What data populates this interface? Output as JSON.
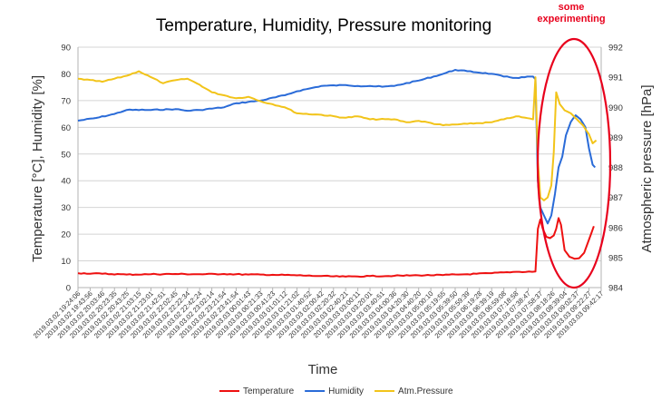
{
  "chart_data": {
    "type": "line",
    "title": "Temperature, Humidity, Pressure monitoring",
    "xlabel": "Time",
    "ylabel": "Temperature [°C], Humidity [%]",
    "y2label": "Atmospheric pressure [hPa]",
    "ylim": [
      0,
      90
    ],
    "y2lim": [
      984,
      992
    ],
    "yticks": [
      "0",
      "10",
      "20",
      "30",
      "40",
      "50",
      "60",
      "70",
      "80",
      "90"
    ],
    "y2ticks": [
      "984",
      "985",
      "986",
      "987",
      "988",
      "989",
      "990",
      "991",
      "992"
    ],
    "grid": true,
    "legend_position": "bottom",
    "annotation": "some experimenting",
    "x_tick_labels": [
      "2019.03.02 19:24:06",
      "2019.03.02 19:43:56",
      "2019.03.02 20:03:46",
      "2019.03.02 20:23:35",
      "2019.03.02 20:43:25",
      "2019.03.02 21:03:15",
      "2019.03.02 21:23:01",
      "2019.03.02 21:42:51",
      "2019.03.02 22:02:45",
      "2019.03.02 22:22:34",
      "2019.03.02 22:42:24",
      "2019.03.02 23:02:14",
      "2019.03.02 23:21:54",
      "2019.03.02 23:41:54",
      "2019.03.03 00:01:43",
      "2019.03.03 00:21:33",
      "2019.03.03 00:41:23",
      "2019.03.03 01:01:12",
      "2019.03.03 01:21:02",
      "2019.03.03 01:40:52",
      "2019.03.03 02:00:42",
      "2019.03.03 02:20:32",
      "2019.03.03 02:40:21",
      "2019.03.03 03:00:11",
      "2019.03.03 03:20:01",
      "2019.03.03 03:40:51",
      "2019.03.03 04:00:36",
      "2019.03.03 04:20:30",
      "2019.03.03 04:40:20",
      "2019.03.03 05:00:10",
      "2019.03.03 05:19:55",
      "2019.03.03 05:39:50",
      "2019.03.03 05:59:39",
      "2019.03.03 06:19:28",
      "2019.03.03 06:39:19",
      "2019.03.03 06:59:08",
      "2019.03.03 07:18:58",
      "2019.03.03 07:38:47",
      "2019.03.03 07:58:37",
      "2019.03.03 08:18:26",
      "2019.03.03 08:39:04",
      "2019.03.03 09:02:37",
      "2019.03.03 09:22:27",
      "2019.03.03 09:42:17"
    ],
    "series": [
      {
        "name": "Temperature",
        "color": "#ee1111",
        "axis": "left",
        "points": [
          [
            0,
            5.4
          ],
          [
            2,
            5.2
          ],
          [
            4,
            4.9
          ],
          [
            6,
            5.0
          ],
          [
            8,
            5.1
          ],
          [
            10,
            5.0
          ],
          [
            12,
            5.1
          ],
          [
            14,
            4.9
          ],
          [
            16,
            4.8
          ],
          [
            18,
            4.6
          ],
          [
            20,
            4.3
          ],
          [
            22,
            4.1
          ],
          [
            24,
            4.3
          ],
          [
            26,
            4.4
          ],
          [
            28,
            4.6
          ],
          [
            30,
            4.7
          ],
          [
            32,
            5.0
          ],
          [
            34,
            5.4
          ],
          [
            36,
            5.9
          ],
          [
            37.6,
            6.0
          ],
          [
            37.8,
            22.0
          ],
          [
            38.0,
            25.5
          ],
          [
            38.2,
            22.0
          ],
          [
            38.5,
            19.0
          ],
          [
            38.8,
            18.5
          ],
          [
            39.1,
            19.5
          ],
          [
            39.3,
            22.0
          ],
          [
            39.5,
            26.0
          ],
          [
            39.7,
            23.5
          ],
          [
            40.0,
            14.0
          ],
          [
            40.4,
            11.5
          ],
          [
            40.8,
            10.8
          ],
          [
            41.2,
            11.0
          ],
          [
            41.6,
            13.0
          ],
          [
            42.0,
            18.0
          ],
          [
            42.4,
            23.0
          ]
        ]
      },
      {
        "name": "Humidity",
        "color": "#2a6bd8",
        "axis": "left",
        "points": [
          [
            0,
            62.5
          ],
          [
            1.5,
            63.5
          ],
          [
            3,
            65.0
          ],
          [
            4,
            66.5
          ],
          [
            6,
            66.5
          ],
          [
            8,
            66.8
          ],
          [
            9,
            66.2
          ],
          [
            10,
            66.5
          ],
          [
            12,
            67.5
          ],
          [
            13,
            69.0
          ],
          [
            15,
            70.0
          ],
          [
            17,
            72.0
          ],
          [
            18,
            73.5
          ],
          [
            19,
            74.5
          ],
          [
            20,
            75.5
          ],
          [
            22,
            75.8
          ],
          [
            23,
            75.5
          ],
          [
            24,
            75.5
          ],
          [
            25,
            75.2
          ],
          [
            26,
            75.5
          ],
          [
            28,
            77.5
          ],
          [
            30,
            80.0
          ],
          [
            31,
            81.5
          ],
          [
            32,
            81.0
          ],
          [
            34,
            80.0
          ],
          [
            35,
            79.0
          ],
          [
            36,
            78.5
          ],
          [
            37.4,
            79.0
          ],
          [
            37.6,
            78.0
          ],
          [
            37.8,
            40.0
          ],
          [
            38.0,
            30.0
          ],
          [
            38.3,
            27.0
          ],
          [
            38.6,
            24.0
          ],
          [
            38.9,
            27.0
          ],
          [
            39.2,
            35.0
          ],
          [
            39.5,
            45.0
          ],
          [
            39.8,
            49.0
          ],
          [
            40.1,
            57.0
          ],
          [
            40.5,
            62.0
          ],
          [
            40.9,
            64.5
          ],
          [
            41.3,
            63.0
          ],
          [
            41.7,
            60.0
          ],
          [
            42.0,
            52.0
          ],
          [
            42.3,
            46.0
          ],
          [
            42.5,
            45.0
          ]
        ]
      },
      {
        "name": "Atm.Pressure",
        "color": "#f2c41a",
        "axis": "right",
        "points": [
          [
            0,
            990.95
          ],
          [
            2,
            990.85
          ],
          [
            4,
            991.05
          ],
          [
            5,
            991.2
          ],
          [
            6,
            991.0
          ],
          [
            7,
            990.8
          ],
          [
            8,
            990.9
          ],
          [
            9,
            990.95
          ],
          [
            10,
            990.75
          ],
          [
            11,
            990.5
          ],
          [
            12,
            990.4
          ],
          [
            13,
            990.3
          ],
          [
            14,
            990.35
          ],
          [
            15,
            990.2
          ],
          [
            16,
            990.1
          ],
          [
            17,
            990.0
          ],
          [
            18,
            989.8
          ],
          [
            20,
            989.75
          ],
          [
            22,
            989.65
          ],
          [
            23,
            989.7
          ],
          [
            24,
            989.6
          ],
          [
            26,
            989.6
          ],
          [
            27,
            989.5
          ],
          [
            28,
            989.55
          ],
          [
            30,
            989.4
          ],
          [
            32,
            989.45
          ],
          [
            34,
            989.5
          ],
          [
            35,
            989.6
          ],
          [
            36,
            989.7
          ],
          [
            37.4,
            989.6
          ],
          [
            37.6,
            991.0
          ],
          [
            37.8,
            988.2
          ],
          [
            38.0,
            987.0
          ],
          [
            38.3,
            986.9
          ],
          [
            38.6,
            987.0
          ],
          [
            38.9,
            987.4
          ],
          [
            39.1,
            988.5
          ],
          [
            39.3,
            990.5
          ],
          [
            39.6,
            990.1
          ],
          [
            40.0,
            989.9
          ],
          [
            40.5,
            989.8
          ],
          [
            41.0,
            989.6
          ],
          [
            41.5,
            989.4
          ],
          [
            42.0,
            989.1
          ],
          [
            42.3,
            988.8
          ],
          [
            42.6,
            988.9
          ]
        ]
      }
    ]
  }
}
